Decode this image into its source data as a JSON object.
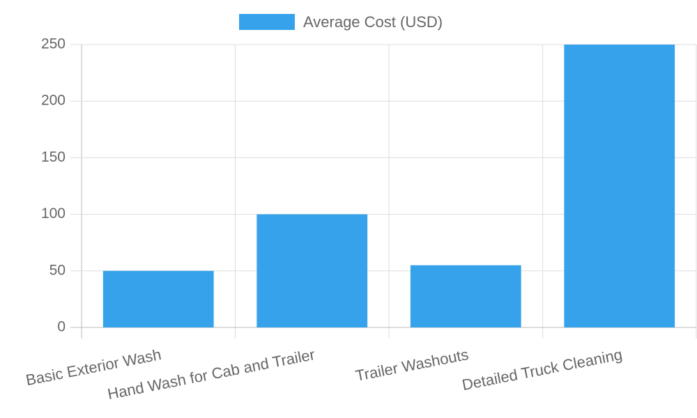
{
  "chart_data": {
    "type": "bar",
    "categories": [
      "Basic Exterior Wash",
      "Hand Wash for Cab and Trailer",
      "Trailer Washouts",
      "Detailed Truck Cleaning"
    ],
    "series": [
      {
        "name": "Average Cost (USD)",
        "color": "#36a2eb",
        "values": [
          50,
          100,
          55,
          250
        ]
      }
    ],
    "ylim": [
      0,
      250
    ],
    "yticks": [
      0,
      50,
      100,
      150,
      200,
      250
    ],
    "grid": true,
    "legend": "top"
  }
}
